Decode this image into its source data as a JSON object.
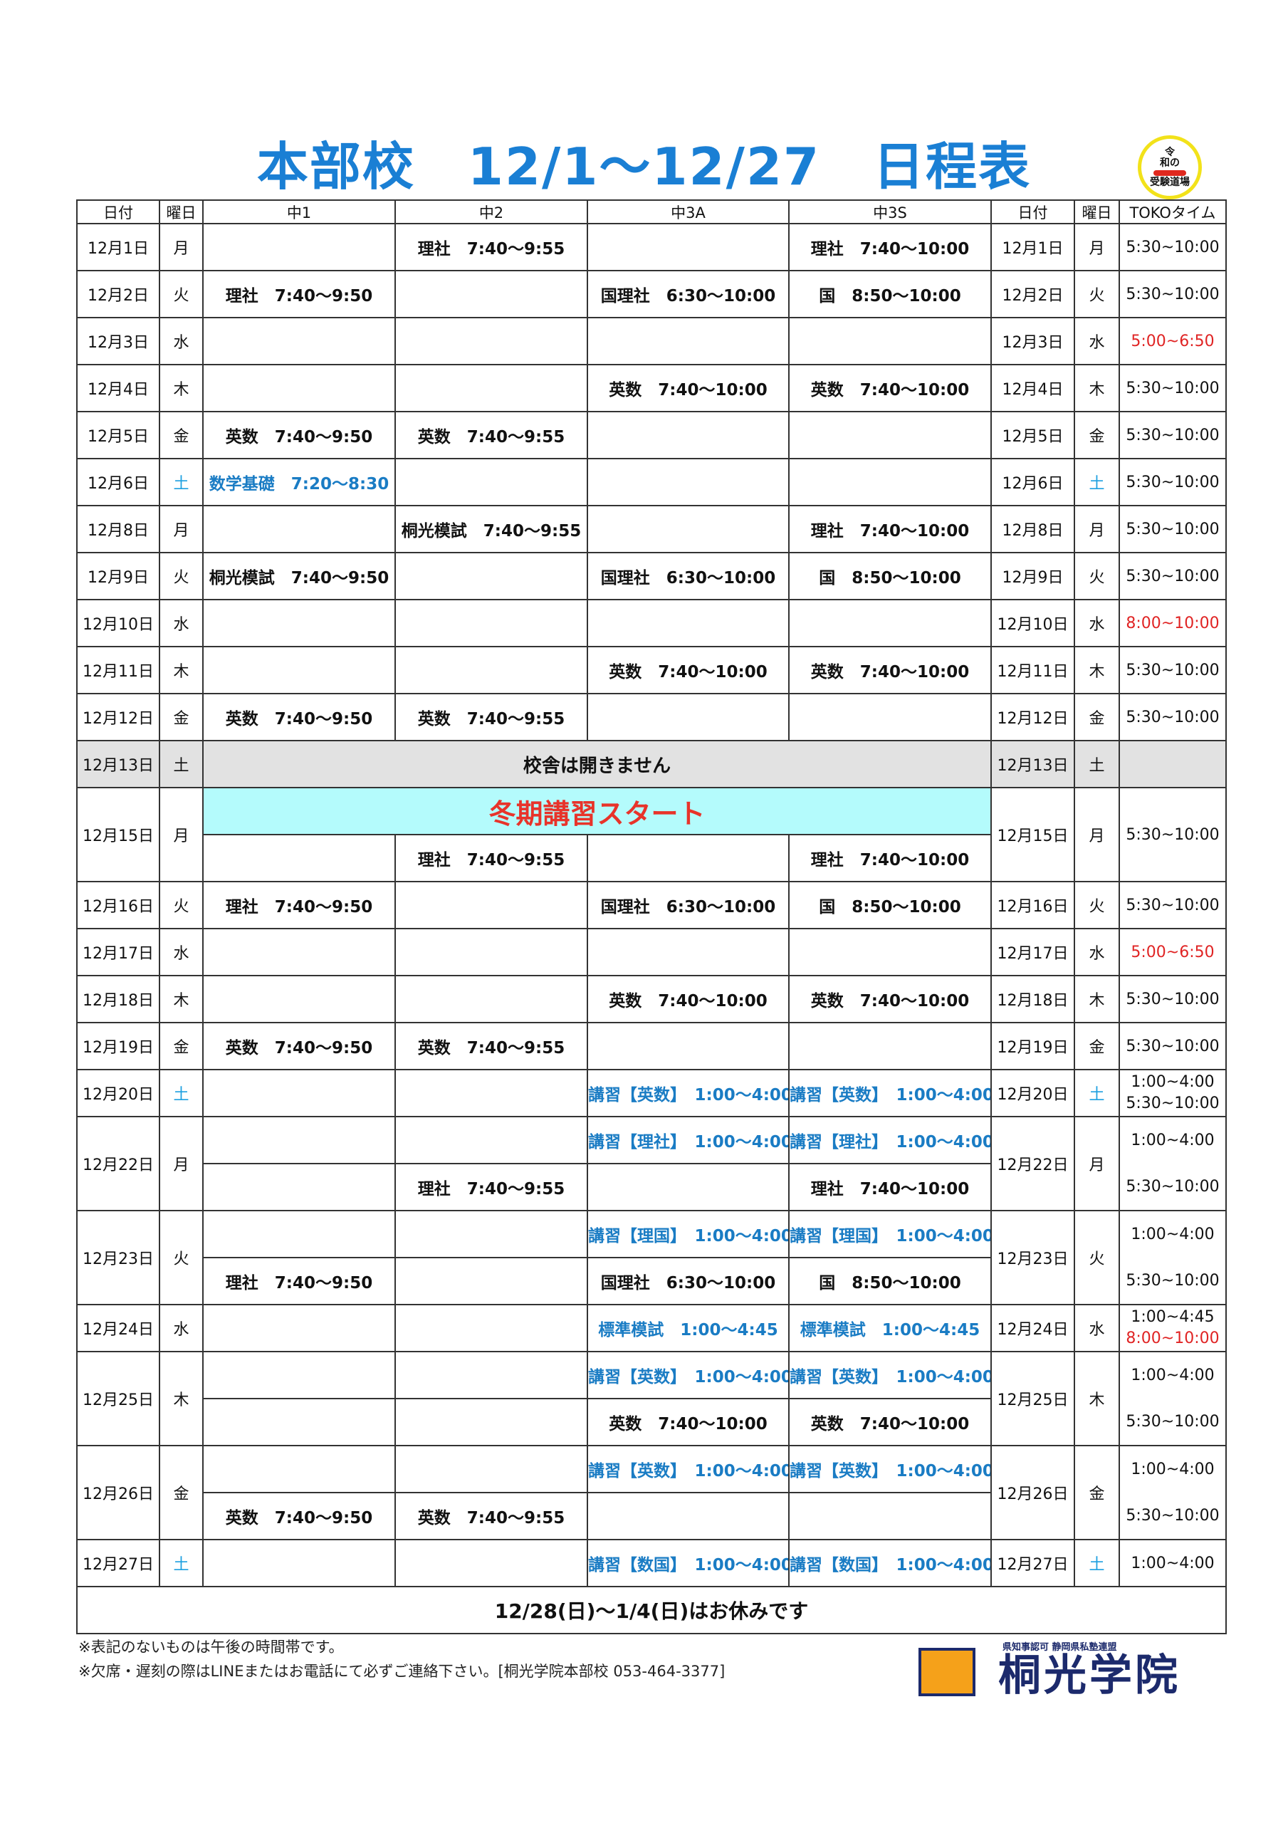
{
  "title": "本部校　12/1～12/27　日程表",
  "badge": {
    "line1": "令",
    "line2": "和の",
    "line3": "受験道場"
  },
  "colors": {
    "title": "#1a7fd4",
    "special_blue": "#1a7cc4",
    "saturday": "#1ea0e0",
    "toko_red": "#e02424",
    "start_bg": "#b4fbfc",
    "start_text": "#e8332a",
    "closed_bg": "#e2e2e2"
  },
  "headers": [
    "日付",
    "曜日",
    "中1",
    "中2",
    "中3A",
    "中3S",
    "日付",
    "曜日",
    "TOKOタイム"
  ],
  "rows": [
    {
      "date": "12月1日",
      "dow": "月",
      "sub": [
        [
          "",
          "理社　7:40～9:55",
          "",
          "理社　7:40～10:00"
        ]
      ],
      "toko": [
        {
          "t": "5:30~10:00"
        }
      ]
    },
    {
      "date": "12月2日",
      "dow": "火",
      "sub": [
        [
          "理社　7:40～9:50",
          "",
          "国理社　6:30～10:00",
          "国　8:50～10:00"
        ]
      ],
      "toko": [
        {
          "t": "5:30~10:00"
        }
      ]
    },
    {
      "date": "12月3日",
      "dow": "水",
      "sub": [
        [
          "",
          "",
          "",
          ""
        ]
      ],
      "toko": [
        {
          "t": "5:00~6:50",
          "red": true
        }
      ]
    },
    {
      "date": "12月4日",
      "dow": "木",
      "sub": [
        [
          "",
          "",
          "英数　7:40～10:00",
          "英数　7:40～10:00"
        ]
      ],
      "toko": [
        {
          "t": "5:30~10:00"
        }
      ]
    },
    {
      "date": "12月5日",
      "dow": "金",
      "sub": [
        [
          "英数　7:40～9:50",
          "英数　7:40～9:55",
          "",
          ""
        ]
      ],
      "toko": [
        {
          "t": "5:30~10:00"
        }
      ]
    },
    {
      "date": "12月6日",
      "dow": "土",
      "sat": true,
      "sub": [
        [
          {
            "t": "数学基礎　7:20～8:30",
            "blue": true
          },
          "",
          "",
          ""
        ]
      ],
      "toko": [
        {
          "t": "5:30~10:00"
        }
      ]
    },
    {
      "date": "12月8日",
      "dow": "月",
      "sub": [
        [
          "",
          "桐光模試　7:40～9:55",
          "",
          "理社　7:40～10:00"
        ]
      ],
      "toko": [
        {
          "t": "5:30~10:00"
        }
      ]
    },
    {
      "date": "12月9日",
      "dow": "火",
      "sub": [
        [
          "桐光模試　7:40～9:50",
          "",
          "国理社　6:30～10:00",
          "国　8:50～10:00"
        ]
      ],
      "toko": [
        {
          "t": "5:30~10:00"
        }
      ]
    },
    {
      "date": "12月10日",
      "dow": "水",
      "sub": [
        [
          "",
          "",
          "",
          ""
        ]
      ],
      "toko": [
        {
          "t": "8:00~10:00",
          "red": true
        }
      ]
    },
    {
      "date": "12月11日",
      "dow": "木",
      "sub": [
        [
          "",
          "",
          "英数　7:40～10:00",
          "英数　7:40～10:00"
        ]
      ],
      "toko": [
        {
          "t": "5:30~10:00"
        }
      ]
    },
    {
      "date": "12月12日",
      "dow": "金",
      "sub": [
        [
          "英数　7:40～9:50",
          "英数　7:40～9:55",
          "",
          ""
        ]
      ],
      "toko": [
        {
          "t": "5:30~10:00"
        }
      ]
    },
    {
      "date": "12月13日",
      "dow": "土",
      "closed": "校舎は開きません",
      "sub": [
        []
      ],
      "toko": []
    },
    {
      "date": "12月15日",
      "dow": "月",
      "start": "冬期講習スタート",
      "sub": [
        [],
        [
          "",
          "理社　7:40～9:55",
          "",
          "理社　7:40～10:00"
        ]
      ],
      "toko": [
        {
          "t": "5:30~10:00"
        }
      ]
    },
    {
      "date": "12月16日",
      "dow": "火",
      "sub": [
        [
          "理社　7:40～9:50",
          "",
          "国理社　6:30～10:00",
          "国　8:50～10:00"
        ]
      ],
      "toko": [
        {
          "t": "5:30~10:00"
        }
      ]
    },
    {
      "date": "12月17日",
      "dow": "水",
      "sub": [
        [
          "",
          "",
          "",
          ""
        ]
      ],
      "toko": [
        {
          "t": "5:00~6:50",
          "red": true
        }
      ]
    },
    {
      "date": "12月18日",
      "dow": "木",
      "sub": [
        [
          "",
          "",
          "英数　7:40～10:00",
          "英数　7:40～10:00"
        ]
      ],
      "toko": [
        {
          "t": "5:30~10:00"
        }
      ]
    },
    {
      "date": "12月19日",
      "dow": "金",
      "sub": [
        [
          "英数　7:40～9:50",
          "英数　7:40～9:55",
          "",
          ""
        ]
      ],
      "toko": [
        {
          "t": "5:30~10:00"
        }
      ]
    },
    {
      "date": "12月20日",
      "dow": "土",
      "sat": true,
      "sub": [
        [
          "",
          "",
          {
            "t": "講習【英数】　1:00～4:00",
            "blue": true
          },
          {
            "t": "講習【英数】　1:00～4:00",
            "blue": true
          }
        ]
      ],
      "toko": [
        {
          "t": "1:00~4:00"
        },
        {
          "t": "5:30~10:00"
        }
      ]
    },
    {
      "date": "12月22日",
      "dow": "月",
      "sub": [
        [
          "",
          "",
          {
            "t": "講習【理社】　1:00～4:00",
            "blue": true
          },
          {
            "t": "講習【理社】　1:00～4:00",
            "blue": true
          }
        ],
        [
          "",
          "理社　7:40～9:55",
          "",
          "理社　7:40～10:00"
        ]
      ],
      "toko": [
        {
          "t": "1:00~4:00"
        },
        {
          "t": "5:30~10:00"
        }
      ]
    },
    {
      "date": "12月23日",
      "dow": "火",
      "sub": [
        [
          "",
          "",
          {
            "t": "講習【理国】　1:00～4:00",
            "blue": true
          },
          {
            "t": "講習【理国】　1:00～4:00",
            "blue": true
          }
        ],
        [
          "理社　7:40～9:50",
          "",
          "国理社　6:30～10:00",
          "国　8:50～10:00"
        ]
      ],
      "toko": [
        {
          "t": "1:00~4:00"
        },
        {
          "t": "5:30~10:00"
        }
      ]
    },
    {
      "date": "12月24日",
      "dow": "水",
      "sub": [
        [
          "",
          "",
          {
            "t": "標準模試　1:00～4:45",
            "blue": true
          },
          {
            "t": "標準模試　1:00～4:45",
            "blue": true
          }
        ]
      ],
      "toko": [
        {
          "t": "1:00~4:45"
        },
        {
          "t": "8:00~10:00",
          "red": true
        }
      ]
    },
    {
      "date": "12月25日",
      "dow": "木",
      "sub": [
        [
          "",
          "",
          {
            "t": "講習【英数】　1:00～4:00",
            "blue": true
          },
          {
            "t": "講習【英数】　1:00～4:00",
            "blue": true
          }
        ],
        [
          "",
          "",
          "英数　7:40～10:00",
          "英数　7:40～10:00"
        ]
      ],
      "toko": [
        {
          "t": "1:00~4:00"
        },
        {
          "t": "5:30~10:00"
        }
      ]
    },
    {
      "date": "12月26日",
      "dow": "金",
      "sub": [
        [
          "",
          "",
          {
            "t": "講習【英数】　1:00～4:00",
            "blue": true
          },
          {
            "t": "講習【英数】　1:00～4:00",
            "blue": true
          }
        ],
        [
          "英数　7:40～9:50",
          "英数　7:40～9:55",
          "",
          ""
        ]
      ],
      "toko": [
        {
          "t": "1:00~4:00"
        },
        {
          "t": "5:30~10:00"
        }
      ]
    },
    {
      "date": "12月27日",
      "dow": "土",
      "sat": true,
      "sub": [
        [
          "",
          "",
          {
            "t": "講習【数国】　1:00～4:00",
            "blue": true
          },
          {
            "t": "講習【数国】　1:00～4:00",
            "blue": true
          }
        ]
      ],
      "toko": [
        {
          "t": "1:00~4:00"
        }
      ]
    }
  ],
  "holiday_notice": "12/28(日)～1/4(日)はお休みです",
  "notes": [
    "※表記のないものは午後の時間帯です。",
    "※欠席・遅刻の際はLINEまたはお電話にて必ずご連絡下さい。[桐光学院本部校 053-464-3377]"
  ],
  "logo": {
    "subtitle": "県知事認可 静岡県私塾連盟",
    "name": "桐光学院"
  }
}
